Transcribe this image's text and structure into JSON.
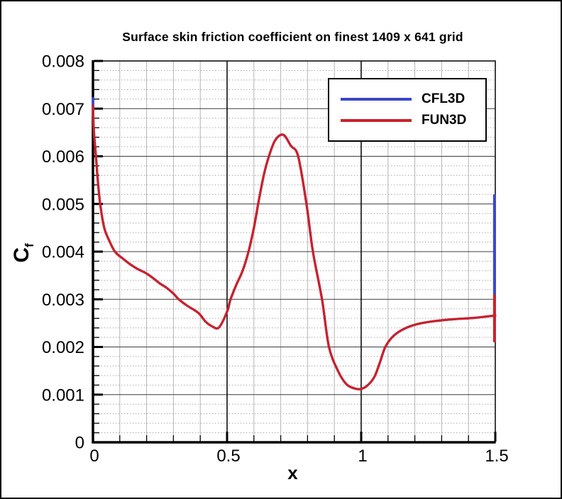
{
  "chart": {
    "title": "Surface skin friction coefficient on finest 1409 x 641 grid",
    "xlabel": "x",
    "ylabel_main": "C",
    "ylabel_sub": "f"
  },
  "chart_data": {
    "type": "line",
    "title": "Surface skin friction coefficient on finest 1409 x 641 grid",
    "xlabel": "x",
    "ylabel": "Cf",
    "xlim": [
      0,
      1.5
    ],
    "ylim": [
      0,
      0.008
    ],
    "grid": true,
    "legend_position": "top-right",
    "x_ticks": {
      "values": [
        0,
        0.5,
        1,
        1.5
      ],
      "labels": [
        "0",
        "0.5",
        "1",
        "1.5"
      ],
      "minor_step": 0.1
    },
    "y_ticks": {
      "values": [
        0,
        0.001,
        0.002,
        0.003,
        0.004,
        0.005,
        0.006,
        0.007,
        0.008
      ],
      "labels": [
        "0",
        "0.001",
        "0.002",
        "0.003",
        "0.004",
        "0.005",
        "0.006",
        "0.007",
        "0.008"
      ],
      "minor_step": 0.0002
    },
    "main_curve": [
      [
        0.0,
        0.00706
      ],
      [
        0.002,
        0.00668
      ],
      [
        0.005,
        0.0064
      ],
      [
        0.011,
        0.006
      ],
      [
        0.018,
        0.0055
      ],
      [
        0.027,
        0.005
      ],
      [
        0.042,
        0.0045
      ],
      [
        0.06,
        0.00424
      ],
      [
        0.082,
        0.004
      ],
      [
        0.11,
        0.00386
      ],
      [
        0.135,
        0.00375
      ],
      [
        0.165,
        0.00364
      ],
      [
        0.197,
        0.00355
      ],
      [
        0.225,
        0.00344
      ],
      [
        0.25,
        0.00333
      ],
      [
        0.275,
        0.00324
      ],
      [
        0.3,
        0.00312
      ],
      [
        0.32,
        0.003
      ],
      [
        0.35,
        0.00287
      ],
      [
        0.394,
        0.00271
      ],
      [
        0.42,
        0.00253
      ],
      [
        0.445,
        0.00243
      ],
      [
        0.47,
        0.00241
      ],
      [
        0.5,
        0.00274
      ],
      [
        0.513,
        0.003
      ],
      [
        0.535,
        0.00331
      ],
      [
        0.558,
        0.0036
      ],
      [
        0.58,
        0.004
      ],
      [
        0.6,
        0.0045
      ],
      [
        0.616,
        0.005
      ],
      [
        0.636,
        0.00558
      ],
      [
        0.656,
        0.006
      ],
      [
        0.68,
        0.00634
      ],
      [
        0.71,
        0.00645
      ],
      [
        0.738,
        0.00622
      ],
      [
        0.765,
        0.006
      ],
      [
        0.796,
        0.005
      ],
      [
        0.82,
        0.004
      ],
      [
        0.854,
        0.003
      ],
      [
        0.88,
        0.002
      ],
      [
        0.915,
        0.00148
      ],
      [
        0.945,
        0.00122
      ],
      [
        0.975,
        0.00113
      ],
      [
        1.0,
        0.00112
      ],
      [
        1.025,
        0.0012
      ],
      [
        1.05,
        0.00138
      ],
      [
        1.07,
        0.00168
      ],
      [
        1.09,
        0.002
      ],
      [
        1.12,
        0.00223
      ],
      [
        1.16,
        0.00238
      ],
      [
        1.21,
        0.00248
      ],
      [
        1.27,
        0.00254
      ],
      [
        1.34,
        0.00258
      ],
      [
        1.42,
        0.00261
      ],
      [
        1.5,
        0.00266
      ]
    ],
    "series": [
      {
        "name": "CFL3D",
        "color": "#3c46cf",
        "left_start_cf": 0.00722,
        "right_spike": {
          "x": 1.497,
          "cf_from": 0.0031,
          "cf_to": 0.0052
        }
      },
      {
        "name": "FUN3D",
        "color": "#cc2128",
        "left_start_cf": 0.00706,
        "right_spike": {
          "x": 1.497,
          "cf_from": 0.0021,
          "cf_to": 0.0031
        }
      }
    ]
  }
}
